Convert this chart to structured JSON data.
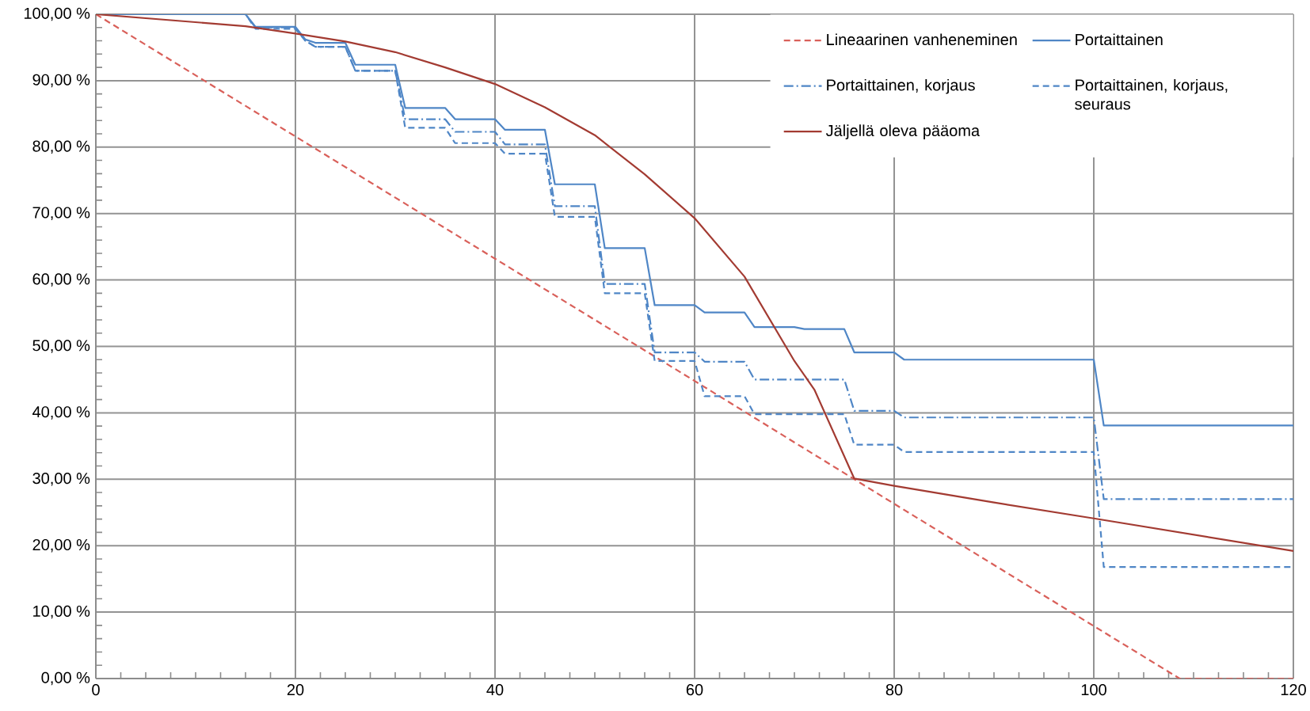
{
  "chart_data": {
    "type": "line",
    "xlim": [
      0,
      120
    ],
    "ylim": [
      0,
      100
    ],
    "xticks": [
      0,
      20,
      40,
      60,
      80,
      100,
      120
    ],
    "yticks": [
      {
        "value": 0,
        "label": "0,00 %"
      },
      {
        "value": 10,
        "label": "10,00 %"
      },
      {
        "value": 20,
        "label": "20,00 %"
      },
      {
        "value": 30,
        "label": "30,00 %"
      },
      {
        "value": 40,
        "label": "40,00 %"
      },
      {
        "value": 50,
        "label": "50,00 %"
      },
      {
        "value": 60,
        "label": "60,00 %"
      },
      {
        "value": 70,
        "label": "70,00 %"
      },
      {
        "value": 80,
        "label": "80,00 %"
      },
      {
        "value": 90,
        "label": "90,00 %"
      },
      {
        "value": 100,
        "label": "100,00 %"
      }
    ],
    "grid": true,
    "legend": "top right",
    "series": [
      {
        "name": "Lineaarinen vanheneminen",
        "color": "#d9605a",
        "line_style": "dashed",
        "x": [
          0,
          20,
          40,
          60,
          80,
          100,
          108.6,
          120
        ],
        "values": [
          100,
          81.6,
          63.2,
          44.8,
          26.3,
          7.9,
          0,
          0
        ]
      },
      {
        "name": "Portaittainen",
        "color": "#4f86c6",
        "line_style": "solid",
        "x": [
          0,
          15,
          16,
          20,
          21,
          22,
          25,
          26,
          30,
          31,
          35,
          36,
          40,
          41,
          45,
          46,
          50,
          51,
          55,
          56,
          60,
          61,
          65,
          66,
          70,
          71,
          75,
          76,
          80,
          81,
          100,
          101,
          120
        ],
        "values": [
          100,
          100,
          98.1,
          98.1,
          96.2,
          95.7,
          95.7,
          92.4,
          92.4,
          85.9,
          85.9,
          84.2,
          84.2,
          82.6,
          82.6,
          74.4,
          74.4,
          64.8,
          64.8,
          56.2,
          56.2,
          55.1,
          55.1,
          52.9,
          52.9,
          52.6,
          52.6,
          49.1,
          49.1,
          48.0,
          48.0,
          38.1,
          38.1
        ]
      },
      {
        "name": "Portaittainen, korjaus",
        "color": "#4f86c6",
        "line_style": "dashdot",
        "x": [
          0,
          15,
          16,
          20,
          21,
          22,
          25,
          26,
          30,
          31,
          35,
          36,
          40,
          41,
          45,
          46,
          50,
          51,
          55,
          56,
          60,
          61,
          65,
          66,
          75,
          76,
          80,
          81,
          100,
          101,
          120
        ],
        "values": [
          100,
          100,
          98.0,
          98.0,
          96.0,
          95.1,
          95.1,
          91.5,
          91.5,
          84.2,
          84.2,
          82.3,
          82.3,
          80.4,
          80.4,
          71.1,
          71.1,
          59.4,
          59.4,
          49.1,
          49.1,
          47.7,
          47.7,
          45.0,
          45.0,
          40.3,
          40.3,
          39.3,
          39.3,
          27.0,
          27.0
        ]
      },
      {
        "name": "Portaittainen, korjaus, seuraus",
        "color": "#4f86c6",
        "line_style": "dashed",
        "x": [
          0,
          15,
          16,
          20,
          21,
          22,
          25,
          26,
          30,
          31,
          35,
          36,
          40,
          41,
          45,
          46,
          50,
          51,
          55,
          56,
          60,
          61,
          65,
          66,
          75,
          76,
          80,
          81,
          100,
          101,
          120
        ],
        "values": [
          100,
          100,
          97.8,
          97.8,
          96.0,
          95.1,
          95.1,
          91.5,
          91.5,
          82.9,
          82.9,
          80.6,
          80.6,
          79.0,
          79.0,
          69.5,
          69.5,
          58.0,
          58.0,
          47.8,
          47.8,
          42.5,
          42.5,
          39.8,
          39.8,
          35.2,
          35.2,
          34.1,
          34.1,
          16.8,
          16.8
        ]
      },
      {
        "name": "Jäljellä oleva pääoma",
        "color": "#a33b32",
        "line_style": "solid",
        "x": [
          0,
          5,
          10,
          15,
          20,
          25,
          30,
          35,
          40,
          45,
          50,
          55,
          60,
          65,
          70,
          72,
          76,
          80,
          90,
          100,
          120
        ],
        "values": [
          100,
          99.4,
          98.8,
          98.2,
          97.1,
          95.9,
          94.3,
          92.0,
          89.5,
          86.0,
          81.8,
          75.9,
          69.3,
          60.5,
          47.8,
          43.5,
          30.1,
          29.0,
          26.5,
          24.1,
          19.2
        ]
      }
    ]
  }
}
